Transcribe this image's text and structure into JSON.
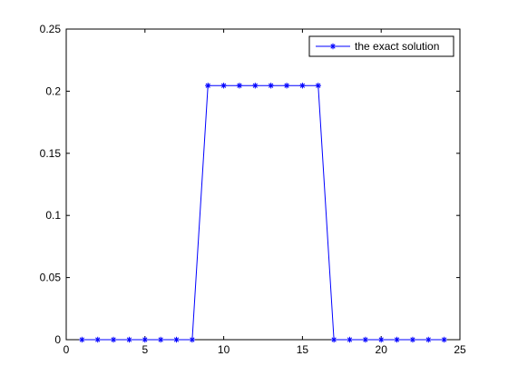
{
  "chart_data": {
    "type": "line",
    "xlim": [
      0,
      25
    ],
    "ylim": [
      0,
      0.25
    ],
    "x_ticks": [
      0,
      5,
      10,
      15,
      20,
      25
    ],
    "y_ticks": [
      0,
      0.05,
      0.1,
      0.15,
      0.2,
      0.25
    ],
    "x_tick_labels": [
      "0",
      "5",
      "10",
      "15",
      "20",
      "25"
    ],
    "y_tick_labels": [
      "0",
      "0.05",
      "0.1",
      "0.15",
      "0.2",
      "0.25"
    ],
    "grid": false,
    "legend_position": "top-right",
    "series": [
      {
        "name": "the exact solution",
        "color": "#0000ff",
        "marker": "asterisk",
        "x": [
          1,
          2,
          3,
          4,
          5,
          6,
          7,
          8,
          9,
          10,
          11,
          12,
          13,
          14,
          15,
          16,
          17,
          18,
          19,
          20,
          21,
          22,
          23,
          24
        ],
        "y": [
          0,
          0,
          0,
          0,
          0,
          0,
          0,
          0,
          0.2045,
          0.2045,
          0.2045,
          0.2045,
          0.2045,
          0.2045,
          0.2045,
          0.2045,
          0,
          0,
          0,
          0,
          0,
          0,
          0,
          0
        ]
      }
    ]
  }
}
